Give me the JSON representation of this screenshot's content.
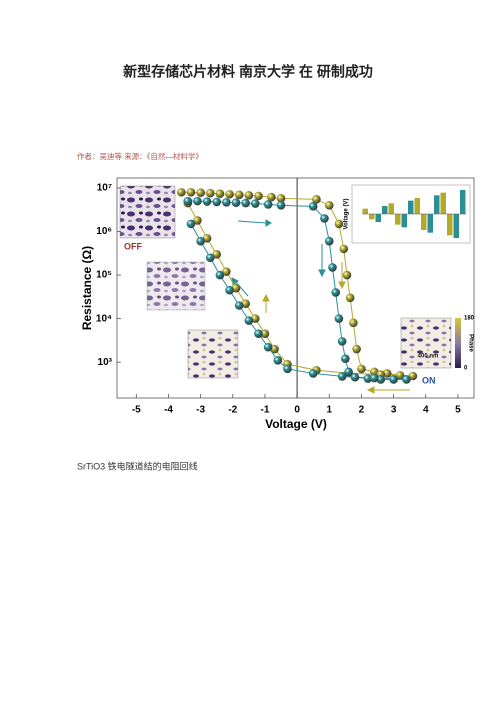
{
  "title": "新型存储芯片材料 南京大学 在 研制成功",
  "byline": "作者：吴迪等 来源：《自然—材料学》",
  "chart_data": {
    "type": "scatter",
    "xlabel": "Voltage (V)",
    "ylabel": "Resistance (Ω)",
    "xlim": [
      -5.6,
      5.5
    ],
    "ylim": [
      150,
      17000000
    ],
    "log_y": true,
    "xticks": [
      -5,
      -4,
      -3,
      -2,
      -1,
      0,
      1,
      2,
      3,
      4,
      5
    ],
    "yticks": [
      {
        "value": 1000,
        "label": "10³"
      },
      {
        "value": 10000,
        "label": "10⁴"
      },
      {
        "value": 100000,
        "label": "10⁵"
      },
      {
        "value": 1000000,
        "label": "10⁶"
      },
      {
        "value": 10000000,
        "label": "10⁷"
      }
    ],
    "series": [
      {
        "color": "#b3a92a",
        "x": [
          -3.6,
          -3.3,
          -3.0,
          -2.7,
          -2.4,
          -2.1,
          -1.8,
          -1.5,
          -1.2,
          -0.8,
          -0.5,
          0.6,
          1.0,
          1.3,
          1.45,
          1.55,
          1.65,
          1.75,
          1.85,
          2.0,
          2.4,
          2.8,
          3.2,
          3.6,
          2.6,
          1.6,
          0.6,
          -0.3,
          -0.7,
          -1.0,
          -1.3,
          -1.6,
          -1.9,
          -2.2,
          -2.5,
          -2.8,
          -3.1,
          -3.4
        ],
        "values": [
          8000000,
          8000000,
          7800000,
          7600000,
          7400000,
          7200000,
          7000000,
          6800000,
          6600000,
          6200000,
          5800000,
          5500000,
          4000000,
          1500000,
          400000,
          100000,
          30000,
          8000,
          2000,
          700,
          600,
          550,
          500,
          480,
          520,
          560,
          650,
          900,
          2000,
          4500,
          10000,
          22000,
          50000,
          120000,
          300000,
          700000,
          1800000,
          4500000
        ]
      },
      {
        "color": "#2a9096",
        "x": [
          -3.4,
          -3.1,
          -2.8,
          -2.5,
          -2.2,
          -1.9,
          -1.6,
          -1.3,
          -0.9,
          -0.5,
          0.5,
          0.85,
          1.0,
          1.1,
          1.2,
          1.3,
          1.4,
          1.5,
          1.6,
          1.8,
          2.2,
          2.6,
          3.0,
          3.4,
          2.4,
          1.4,
          0.5,
          -0.3,
          -0.6,
          -0.9,
          -1.2,
          -1.5,
          -1.8,
          -2.1,
          -2.4,
          -2.7,
          -3.0,
          -3.3
        ],
        "values": [
          5000000,
          5000000,
          4900000,
          4800000,
          4700000,
          4600000,
          4500000,
          4400000,
          4200000,
          4000000,
          3800000,
          2000000,
          600000,
          150000,
          40000,
          10000,
          3000,
          1200,
          600,
          450,
          420,
          400,
          400,
          400,
          430,
          470,
          550,
          700,
          1100,
          2200,
          4500,
          9000,
          20000,
          45000,
          100000,
          250000,
          600000,
          1500000
        ]
      }
    ],
    "annotations": [
      "OFF",
      "ON"
    ],
    "inset": {
      "label": "Voltage (V)",
      "colors": [
        "#b3a92a",
        "#2a9096"
      ],
      "values": [
        1,
        -1,
        -1.5,
        1.5,
        2,
        -2,
        -2.5,
        2.5,
        3,
        -3,
        -3.5,
        3.5,
        4,
        -4,
        -4.5,
        4.5
      ]
    },
    "colorbar": {
      "label": "Phase",
      "ticks": [
        180,
        0
      ],
      "scale_label": "400 nm"
    }
  },
  "caption": "SrTiO3 铁电隧道结的电阻回线"
}
